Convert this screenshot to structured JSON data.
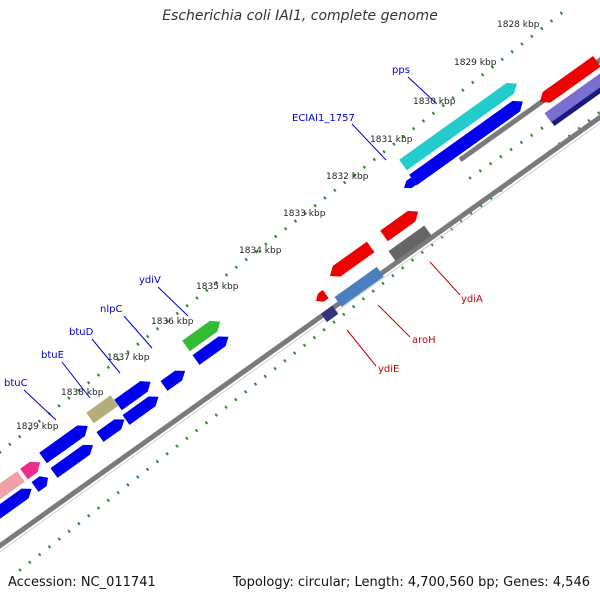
{
  "title": "Escherichia coli IAI1, complete genome",
  "footer": {
    "accession": "Accession: NC_011741",
    "stats": "Topology: circular; Length: 4,700,560 bp; Genes: 4,546"
  },
  "colors": {
    "label_top": "#0000cc",
    "label_bottom": "#cc0000",
    "backbone": "#808080",
    "ticks": "#2e8b2e"
  },
  "kbp_labels": [
    "1828 kbp",
    "1829 kbp",
    "1830 kbp",
    "1831 kbp",
    "1832 kbp",
    "1833 kbp",
    "1834 kbp",
    "1835 kbp",
    "1836 kbp",
    "1837 kbp",
    "1838 kbp",
    "1839 kbp"
  ],
  "gene_labels_top": [
    "pps",
    "ECIAI1_1757",
    "ydiV",
    "nlpC",
    "btuD",
    "btuE",
    "btuC"
  ],
  "gene_labels_bottom": [
    "ydiA",
    "aroH",
    "ydiE"
  ]
}
